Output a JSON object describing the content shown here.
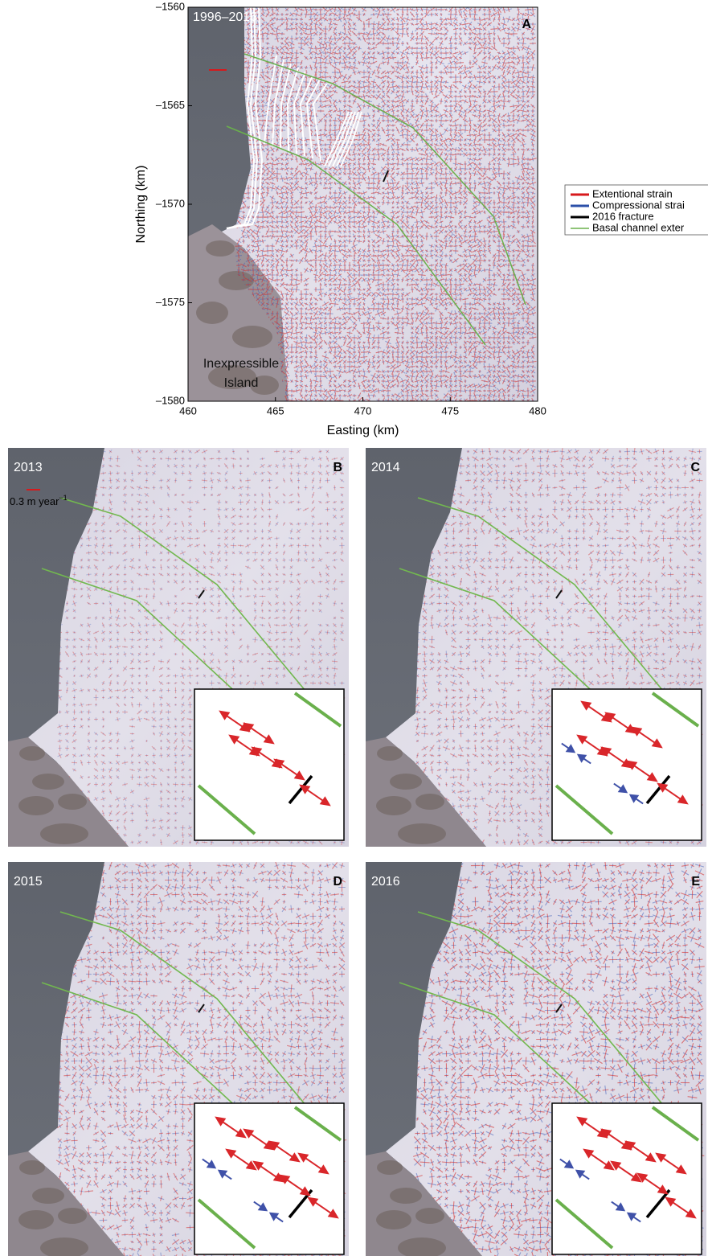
{
  "panel_a": {
    "label": "A",
    "period": "1996–2016",
    "island_label": [
      "Inexpressible",
      "Island"
    ],
    "x_axis": {
      "label": "Easting (km)",
      "lim": [
        460,
        480
      ],
      "ticks": [
        460,
        465,
        470,
        475,
        480
      ]
    },
    "y_axis": {
      "label": "Northing (km)",
      "lim": [
        -1560,
        -1580
      ],
      "ticks": [
        {
          "value": -1560,
          "label": "–1560"
        },
        {
          "value": -1565,
          "label": "–1565"
        },
        {
          "value": -1570,
          "label": "–1570"
        },
        {
          "value": -1575,
          "label": "–1575"
        },
        {
          "value": -1580,
          "label": "–1580"
        }
      ]
    },
    "legend": [
      {
        "label": "Extentional strain",
        "color": "#d7191c"
      },
      {
        "label": "Compressional strai",
        "color": "#2b4fa8"
      },
      {
        "label": "2016 fracture",
        "color": "#000000"
      },
      {
        "label": "Basal channel exter",
        "color": "#6ab04c"
      }
    ]
  },
  "panels": [
    {
      "year": "2013",
      "label": "B"
    },
    {
      "year": "2014",
      "label": "C"
    },
    {
      "year": "2015",
      "label": "D"
    },
    {
      "year": "2016",
      "label": "E"
    }
  ],
  "scale_label": "0.3 m year",
  "scale_exponent": "−1"
}
